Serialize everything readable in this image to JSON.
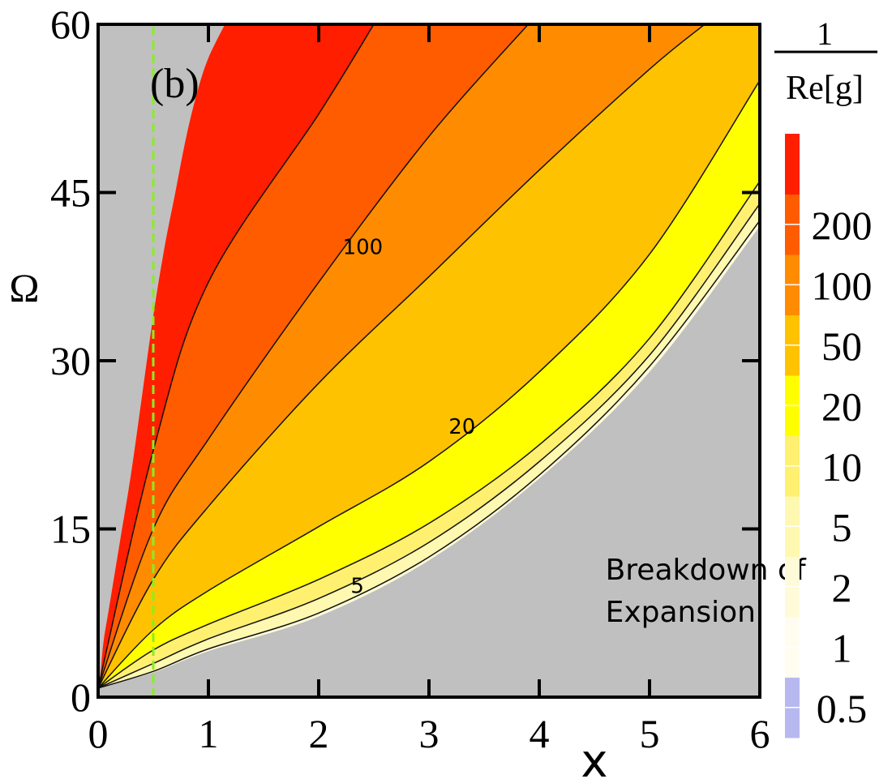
{
  "chart_data": {
    "type": "heatmap",
    "panel_label": "(b)",
    "xlabel": "x",
    "ylabel": "Ω",
    "xlim": [
      0,
      6
    ],
    "ylim": [
      0,
      60
    ],
    "x_ticks": [
      "0",
      "1",
      "2",
      "3",
      "4",
      "5",
      "6"
    ],
    "y_ticks": [
      "0",
      "15",
      "30",
      "45",
      "60"
    ],
    "colorbar_title_num": "1",
    "colorbar_title_den": "Re[g]",
    "colorbar_levels": [
      {
        "label": "0.5",
        "color": "#B8B8F0"
      },
      {
        "label": "1",
        "color": "#FFFDF0"
      },
      {
        "label": "2",
        "color": "#FFFBD8"
      },
      {
        "label": "5",
        "color": "#FFF8B0"
      },
      {
        "label": "10",
        "color": "#FFF070"
      },
      {
        "label": "20",
        "color": "#FFFF00"
      },
      {
        "label": "50",
        "color": "#FFC200"
      },
      {
        "label": "100",
        "color": "#FF8C00"
      },
      {
        "label": "200",
        "color": "#FF5C00"
      },
      {
        "label": "",
        "color": "#FF1E00"
      }
    ],
    "region_colors": {
      "breakdown": "#C0C0C0",
      "level_200": "#FF1E00",
      "level_100": "#FF5C00",
      "level_50": "#FF8C00",
      "level_20": "#FFC200",
      "level_10": "#FFFF00",
      "level_5": "#FFF070",
      "level_2": "#FFF8B0",
      "level_1": "#FFFBD8"
    },
    "contours": [
      {
        "id": "c200",
        "label": "",
        "points": [
          [
            0,
            0.8
          ],
          [
            0.5,
            22
          ],
          [
            1,
            37
          ],
          [
            2,
            52
          ],
          [
            2.5,
            60
          ]
        ]
      },
      {
        "id": "c100",
        "label": "100",
        "label_at": [
          2.4,
          39.5
        ],
        "points": [
          [
            0,
            0.8
          ],
          [
            0.5,
            15
          ],
          [
            1,
            23
          ],
          [
            2,
            37
          ],
          [
            3,
            50
          ],
          [
            3.9,
            60
          ]
        ]
      },
      {
        "id": "c50",
        "label": "",
        "points": [
          [
            0,
            0.8
          ],
          [
            0.5,
            10.5
          ],
          [
            1,
            17
          ],
          [
            2,
            28
          ],
          [
            3,
            37.5
          ],
          [
            4,
            47
          ],
          [
            5,
            56
          ],
          [
            5.5,
            60
          ]
        ]
      },
      {
        "id": "c20",
        "label": "20",
        "label_at": [
          3.3,
          23.5
        ],
        "points": [
          [
            0,
            0.8
          ],
          [
            0.5,
            6
          ],
          [
            1,
            9.5
          ],
          [
            2,
            15.2
          ],
          [
            3,
            21
          ],
          [
            4,
            29
          ],
          [
            5,
            39.5
          ],
          [
            6,
            55
          ]
        ]
      },
      {
        "id": "c10",
        "label": "",
        "points": [
          [
            0,
            0.8
          ],
          [
            0.5,
            4.2
          ],
          [
            1,
            6.5
          ],
          [
            2,
            10.5
          ],
          [
            3,
            15.5
          ],
          [
            4,
            22.5
          ],
          [
            5,
            32
          ],
          [
            6,
            46
          ]
        ]
      },
      {
        "id": "c5",
        "label": "5",
        "label_at": [
          2.35,
          9.3
        ],
        "points": [
          [
            0,
            0.8
          ],
          [
            0.5,
            3
          ],
          [
            1,
            5.2
          ],
          [
            2,
            8.8
          ],
          [
            3,
            13.8
          ],
          [
            4,
            21
          ],
          [
            5,
            30.5
          ],
          [
            6,
            44
          ]
        ]
      },
      {
        "id": "c2",
        "label": "",
        "points": [
          [
            0,
            0.8
          ],
          [
            0.5,
            2.3
          ],
          [
            1,
            4.3
          ],
          [
            2,
            7.5
          ],
          [
            3,
            12.5
          ],
          [
            4,
            19.8
          ],
          [
            5,
            29.5
          ],
          [
            6,
            42.5
          ]
        ]
      }
    ],
    "breakdown_left_edge": [
      [
        0,
        0.8
      ],
      [
        0.02,
        2
      ],
      [
        0.05,
        5
      ],
      [
        0.1,
        8
      ],
      [
        0.2,
        14
      ],
      [
        0.3,
        20
      ],
      [
        0.4,
        27
      ],
      [
        0.5,
        34
      ],
      [
        0.6,
        40
      ],
      [
        0.7,
        45
      ],
      [
        0.8,
        50
      ],
      [
        0.9,
        54
      ],
      [
        1.0,
        57
      ],
      [
        1.15,
        60
      ]
    ],
    "breakdown_right_edge": [
      [
        0,
        0.8
      ],
      [
        0.5,
        2.2
      ],
      [
        1,
        4.1
      ],
      [
        2,
        7.2
      ],
      [
        3,
        12.2
      ],
      [
        4,
        19.5
      ],
      [
        5,
        29
      ],
      [
        6,
        42
      ]
    ],
    "reference_line": {
      "x": 0.5,
      "color": "#88EE22"
    },
    "annotations": [
      {
        "id": "breakdown",
        "lines": [
          "Breakdown of",
          "Expansion"
        ],
        "at": [
          4.6,
          10.5
        ]
      }
    ]
  }
}
